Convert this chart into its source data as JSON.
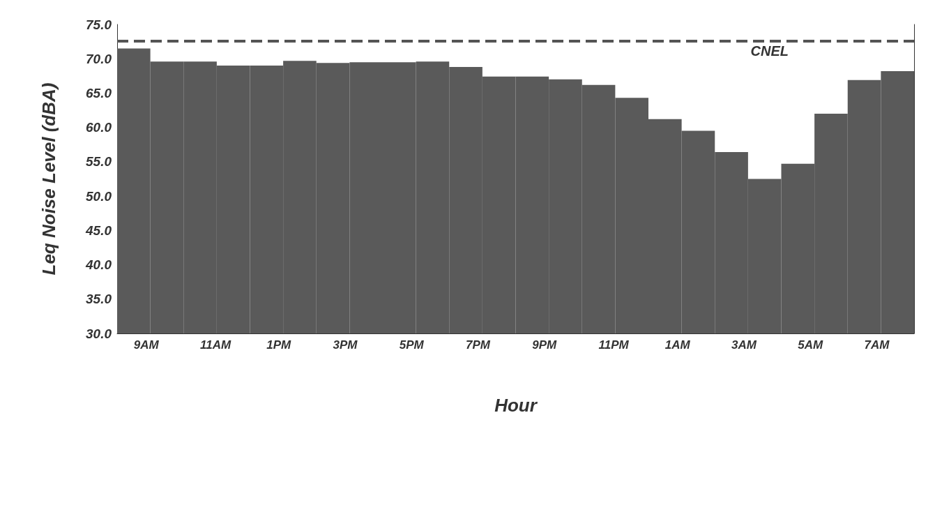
{
  "chart_data": {
    "type": "bar",
    "xlabel": "Hour",
    "ylabel": "Leq Noise Level (dBA)",
    "categories": [
      "9AM",
      null,
      "11AM",
      null,
      "1PM",
      null,
      "3PM",
      null,
      "5PM",
      null,
      "7PM",
      null,
      "9PM",
      null,
      "11PM",
      null,
      "1AM",
      null,
      "3AM",
      null,
      "5AM",
      null,
      "7AM",
      null
    ],
    "values": [
      71.5,
      69.6,
      69.6,
      69.0,
      69.0,
      69.7,
      69.4,
      69.5,
      69.5,
      69.6,
      68.8,
      67.4,
      67.4,
      67.0,
      66.2,
      64.3,
      61.2,
      59.5,
      56.4,
      52.5,
      54.7,
      62.0,
      66.9,
      68.2
    ],
    "color": "#5a5a5a",
    "ylim": [
      30,
      75
    ],
    "yticks": [
      {
        "value": 30,
        "label": "30.0"
      },
      {
        "value": 35,
        "label": "35.0"
      },
      {
        "value": 40,
        "label": "40.0"
      },
      {
        "value": 45,
        "label": "45.0"
      },
      {
        "value": 50,
        "label": "50.0"
      },
      {
        "value": 55,
        "label": "55.0"
      },
      {
        "value": 60,
        "label": "60.0"
      },
      {
        "value": 65,
        "label": "65.0"
      },
      {
        "value": 70,
        "label": "70.0"
      },
      {
        "value": 75,
        "label": "75.0"
      }
    ],
    "ref_lines": [
      {
        "axis": "y",
        "value": 72.6,
        "label": "CNEL",
        "color": "#555555",
        "line_style": "dashed"
      }
    ],
    "grid": false
  }
}
